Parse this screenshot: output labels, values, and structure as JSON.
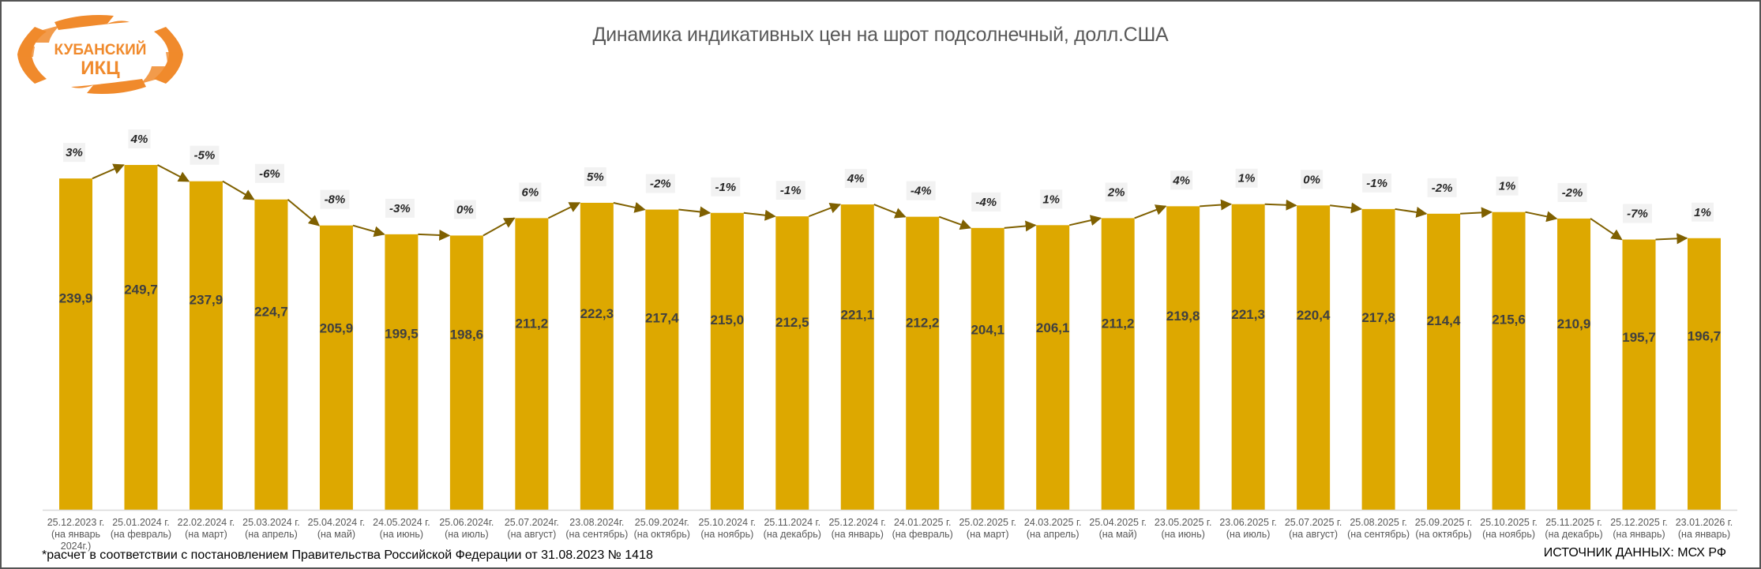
{
  "logo": {
    "line1": "КУБАНСКИЙ",
    "line2": "ИКЦ",
    "color": "#F08A2C"
  },
  "footnote": "*расчет в соответствии с постановлением Правительства Российской Федерации  от 31.08.2023 № 1418",
  "source": "ИСТОЧНИК ДАННЫХ: МСХ РФ",
  "colors": {
    "bar": "#DDA800",
    "arrow": "#7F6000",
    "label_bg": "#F2F2F2",
    "axis": "#D9D9D9"
  },
  "chart_data": {
    "type": "bar",
    "title": "Динамика индикативных цен на шрот подсолнечный, долл.США",
    "xlabel": "",
    "ylabel": "",
    "ylim": [
      0,
      250
    ],
    "grid": false,
    "legend": "none",
    "categories": [
      [
        "25.12.2023 г.",
        "(на январь",
        "2024г.)"
      ],
      [
        "25.01.2024 г.",
        "(на февраль)"
      ],
      [
        "22.02.2024 г.",
        "(на март)"
      ],
      [
        "25.03.2024 г.",
        "(на апрель)"
      ],
      [
        "25.04.2024 г.",
        "(на май)"
      ],
      [
        "24.05.2024 г.",
        "(на июнь)"
      ],
      [
        "25.06.2024г.",
        "(на июль)"
      ],
      [
        "25.07.2024г.",
        "(на август)"
      ],
      [
        "23.08.2024г.",
        "(на сентябрь)"
      ],
      [
        "25.09.2024г.",
        "(на октябрь)"
      ],
      [
        "25.10.2024 г.",
        "(на ноябрь)"
      ],
      [
        "25.11.2024 г.",
        "(на декабрь)"
      ],
      [
        "25.12.2024 г.",
        "(на январь)"
      ],
      [
        "24.01.2025 г.",
        "(на февраль)"
      ],
      [
        "25.02.2025 г.",
        "(на март)"
      ],
      [
        "24.03.2025 г.",
        "(на апрель)"
      ],
      [
        "25.04.2025 г.",
        "(на май)"
      ],
      [
        "23.05.2025 г.",
        "(на июнь)"
      ],
      [
        "23.06.2025 г.",
        "(на июль)"
      ],
      [
        "25.07.2025 г.",
        "(на август)"
      ],
      [
        "25.08.2025 г.",
        "(на сентябрь)"
      ],
      [
        "25.09.2025 г.",
        "(на октябрь)"
      ],
      [
        "25.10.2025 г.",
        "(на ноябрь)"
      ],
      [
        "25.11.2025 г.",
        "(на декабрь)"
      ],
      [
        "25.12.2025 г.",
        "(на январь)"
      ],
      [
        "23.01.2026 г.",
        "(на январь)"
      ]
    ],
    "values": [
      239.9,
      249.7,
      237.9,
      224.7,
      205.9,
      199.5,
      198.6,
      211.2,
      222.3,
      217.4,
      215.0,
      212.5,
      221.1,
      212.2,
      204.1,
      206.1,
      211.2,
      219.8,
      221.3,
      220.4,
      217.8,
      214.4,
      215.6,
      210.9,
      195.7,
      196.7
    ],
    "value_labels": [
      "239,9",
      "249,7",
      "237,9",
      "224,7",
      "205,9",
      "199,5",
      "198,6",
      "211,2",
      "222,3",
      "217,4",
      "215,0",
      "212,5",
      "221,1",
      "212,2",
      "204,1",
      "206,1",
      "211,2",
      "219,8",
      "221,3",
      "220,4",
      "217,8",
      "214,4",
      "215,6",
      "210,9",
      "195,7",
      "196,7"
    ],
    "change_labels": [
      "3%",
      "4%",
      "-5%",
      "-6%",
      "-8%",
      "-3%",
      "0%",
      "6%",
      "5%",
      "-2%",
      "-1%",
      "-1%",
      "4%",
      "-4%",
      "-4%",
      "1%",
      "2%",
      "4%",
      "1%",
      "0%",
      "-1%",
      "-2%",
      "1%",
      "-2%",
      "-7%",
      "1%"
    ]
  }
}
